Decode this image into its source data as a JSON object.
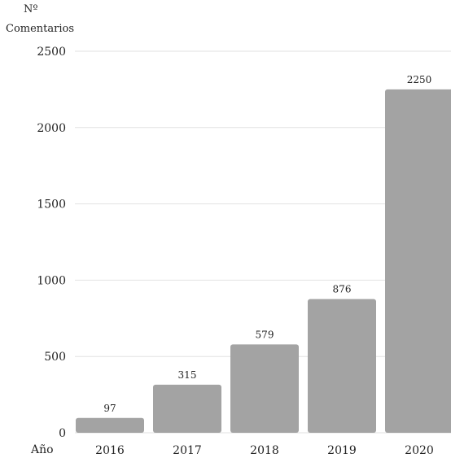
{
  "chart_data": {
    "type": "bar",
    "title": "",
    "ylabel_lines": [
      "Nº",
      "Comentarios"
    ],
    "xlabel": "Año",
    "categories": [
      "2016",
      "2017",
      "2018",
      "2019",
      "2020"
    ],
    "values": [
      97,
      315,
      579,
      876,
      2250
    ],
    "data_labels": [
      "97",
      "315",
      "579",
      "876",
      "2250"
    ],
    "ylim": [
      0,
      2500
    ],
    "yticks": [
      0,
      500,
      1000,
      1500,
      2000,
      2500
    ],
    "ytick_labels": [
      "0",
      "500",
      "1000",
      "1500",
      "2000",
      "2500"
    ],
    "grid": "horizontal",
    "legend": "none",
    "colors": {
      "bar": "#a3a3a3",
      "grid": "#e2e2e2",
      "text": "#222222"
    }
  }
}
